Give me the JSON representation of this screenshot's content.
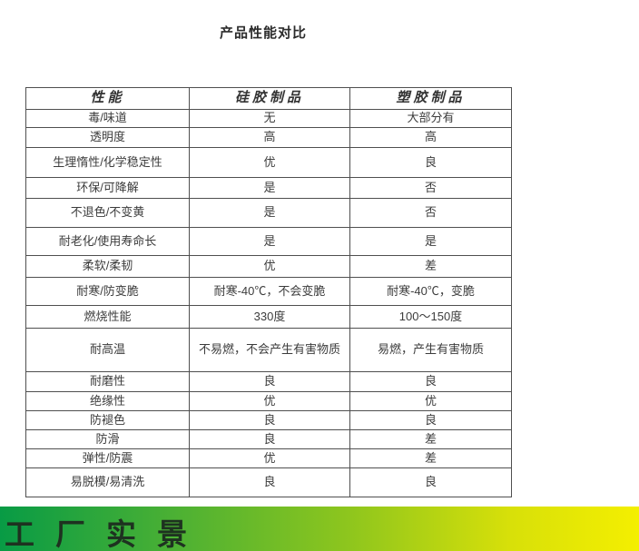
{
  "page": {
    "title": "产品性能对比"
  },
  "table": {
    "headers": [
      "性能",
      "硅胶制品",
      "塑胶制品"
    ],
    "rows": [
      {
        "property": "毒/味道",
        "silicone": "无",
        "plastic": "大部分有"
      },
      {
        "property": "透明度",
        "silicone": "高",
        "plastic": "高"
      },
      {
        "property": "生理惰性/化学稳定性",
        "silicone": "优",
        "plastic": "良"
      },
      {
        "property": "环保/可降解",
        "silicone": "是",
        "plastic": "否"
      },
      {
        "property": "不退色/不变黄",
        "silicone": "是",
        "plastic": "否"
      },
      {
        "property": "耐老化/使用寿命长",
        "silicone": "是",
        "plastic": "是"
      },
      {
        "property": "柔软/柔韧",
        "silicone": "优",
        "plastic": "差"
      },
      {
        "property": "耐寒/防变脆",
        "silicone": "耐寒-40℃，不会变脆",
        "plastic": "耐寒-40℃，变脆"
      },
      {
        "property": "燃烧性能",
        "silicone": "330度",
        "plastic": "100～150度"
      },
      {
        "property": "耐高温",
        "silicone": "不易燃，不会产生有害物质",
        "plastic": "易燃，产生有害物质"
      },
      {
        "property": "耐磨性",
        "silicone": "良",
        "plastic": "良"
      },
      {
        "property": "绝缘性",
        "silicone": "优",
        "plastic": "优"
      },
      {
        "property": "防褪色",
        "silicone": "良",
        "plastic": "良"
      },
      {
        "property": "防滑",
        "silicone": "良",
        "plastic": "差"
      },
      {
        "property": "弹性/防震",
        "silicone": "优",
        "plastic": "差"
      },
      {
        "property": "易脱模/易清洗",
        "silicone": "良",
        "plastic": "良"
      }
    ]
  },
  "footer": {
    "banner_text": "工厂实景",
    "gradient_start_color": "#089b45",
    "gradient_mid_color": "#8fc61d",
    "gradient_end_color": "#f4ef00",
    "banner_text_color": "#1e3220"
  }
}
